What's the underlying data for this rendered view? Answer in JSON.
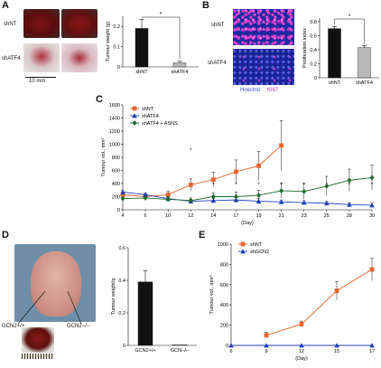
{
  "figure": {
    "panels": {
      "A": {
        "letter": "A",
        "row_labels": [
          "shNT",
          "shATF4"
        ],
        "scale_bar_label": "10 mm",
        "chart": {
          "type": "bar",
          "ylabel": "Tumour weight (g)",
          "categories": [
            "shNT",
            "shATF4"
          ],
          "values": [
            0.19,
            0.02
          ],
          "errors": [
            0.045,
            0.008
          ],
          "yticks": [
            "0",
            "0.1",
            "0.2"
          ],
          "ylim": [
            0,
            0.25
          ],
          "sig": "*"
        }
      },
      "B": {
        "letter": "B",
        "row_labels": [
          "shNT",
          "shATF4"
        ],
        "stain_labels": [
          "Hoechst",
          "Ki67"
        ],
        "chart": {
          "type": "bar",
          "ylabel": "Proliferation index",
          "categories": [
            "shNT",
            "shATF4"
          ],
          "values": [
            0.7,
            0.43
          ],
          "errors": [
            0.03,
            0.03
          ],
          "yticks": [
            "0",
            "0.2",
            "0.4",
            "0.6",
            "0.8"
          ],
          "ylim": [
            0,
            0.85
          ],
          "sig": "*"
        }
      },
      "C": {
        "letter": "C",
        "chart": {
          "type": "line",
          "ylabel": "Tumour vol., mm³",
          "xlabel": "(Day)",
          "x": [
            4,
            6,
            10,
            12,
            14,
            17,
            19,
            21,
            23,
            25,
            28,
            30
          ],
          "xticks": [
            "4",
            "6",
            "10",
            "12",
            "14",
            "17",
            "19",
            "21",
            "23",
            "25",
            "28",
            "30"
          ],
          "yticks": [
            "0",
            "200",
            "400",
            "600",
            "800",
            "1000",
            "1200",
            "1400",
            "1600"
          ],
          "ylim": [
            0,
            1600
          ],
          "series": [
            {
              "name": "shNT",
              "color": "#e8632b",
              "marker": "square",
              "values": [
                230,
                200,
                230,
                380,
                460,
                580,
                670,
                980,
                null,
                null,
                null,
                null
              ],
              "errors": [
                40,
                40,
                50,
                90,
                110,
                180,
                220,
                380,
                null,
                null,
                null,
                null
              ]
            },
            {
              "name": "shATF4",
              "color": "#1f3fbf",
              "marker": "triangle",
              "values": [
                270,
                230,
                170,
                130,
                140,
                150,
                130,
                120,
                110,
                100,
                80,
                70
              ],
              "errors": [
                30,
                30,
                30,
                30,
                30,
                40,
                40,
                30,
                30,
                30,
                30,
                30
              ]
            },
            {
              "name": "shATF4 + ASNS",
              "color": "#1a6b2a",
              "marker": "diamond",
              "values": [
                170,
                180,
                160,
                140,
                200,
                200,
                220,
                290,
                280,
                360,
                450,
                490
              ],
              "errors": [
                20,
                30,
                30,
                40,
                60,
                70,
                80,
                110,
                120,
                150,
                170,
                190
              ]
            }
          ],
          "stars": [
            "*",
            "*",
            "*",
            "*",
            "*",
            "*",
            "*",
            "*",
            "*"
          ]
        }
      },
      "D": {
        "letter": "D",
        "genotype_labels": [
          "GCN2+/+",
          "GCN2−/−"
        ],
        "chart": {
          "type": "bar",
          "ylabel": "Tumour weight/g",
          "categories": [
            "GCN2+/+",
            "GCN−/−"
          ],
          "values": [
            0.39,
            0.005
          ],
          "errors": [
            0.07,
            0.0
          ],
          "yticks": [
            "0",
            "0.2",
            "0.4",
            "0.6"
          ],
          "ylim": [
            0,
            0.6
          ]
        }
      },
      "E": {
        "letter": "E",
        "chart": {
          "type": "line",
          "ylabel": "Tumour vol., mm³",
          "xlabel": "(Day)",
          "x": [
            6,
            9,
            12,
            15,
            17
          ],
          "xticks": [
            "6",
            "9",
            "12",
            "15",
            "17"
          ],
          "yticks": [
            "0",
            "200",
            "400",
            "600",
            "800",
            "1000"
          ],
          "ylim": [
            0,
            1000
          ],
          "series": [
            {
              "name": "shNT",
              "color": "#e8632b",
              "marker": "square",
              "values": [
                null,
                100,
                210,
                540,
                750
              ],
              "errors": [
                null,
                30,
                30,
                90,
                110
              ]
            },
            {
              "name": "shGCN2",
              "color": "#1f3fbf",
              "marker": "triangle",
              "values": [
                0,
                0,
                0,
                0,
                0
              ],
              "errors": [
                0,
                0,
                0,
                0,
                0
              ]
            }
          ]
        }
      }
    }
  }
}
